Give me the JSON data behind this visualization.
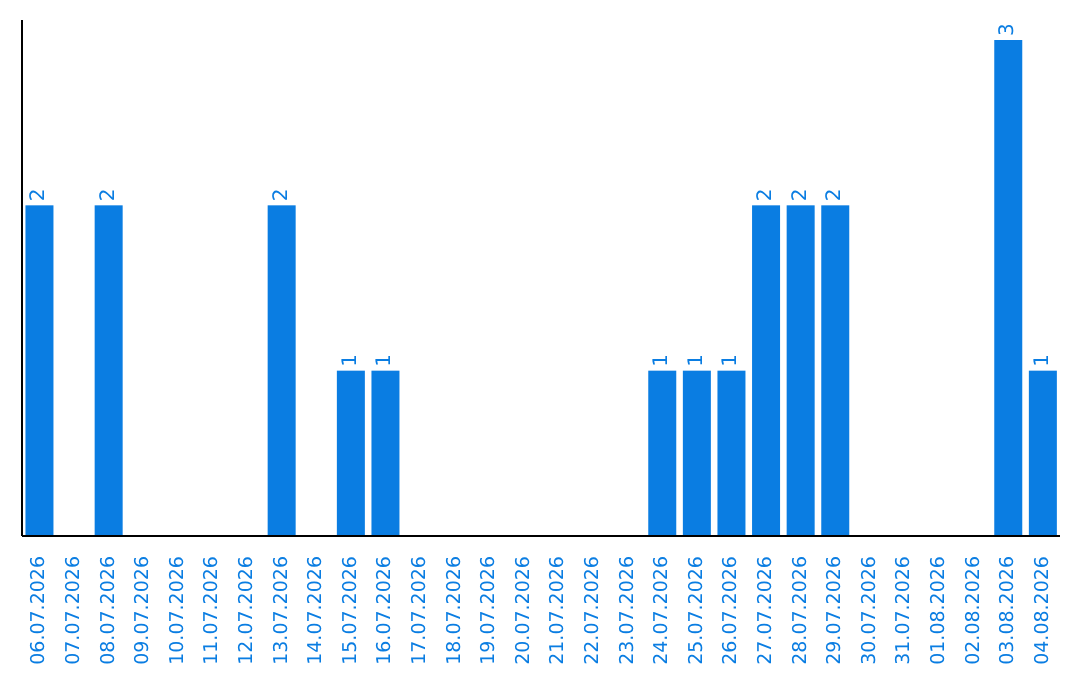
{
  "chart_data": {
    "type": "bar",
    "categories": [
      "06.07.2026",
      "07.07.2026",
      "08.07.2026",
      "09.07.2026",
      "10.07.2026",
      "11.07.2026",
      "12.07.2026",
      "13.07.2026",
      "14.07.2026",
      "15.07.2026",
      "16.07.2026",
      "17.07.2026",
      "18.07.2026",
      "19.07.2026",
      "20.07.2026",
      "21.07.2026",
      "22.07.2026",
      "23.07.2026",
      "24.07.2026",
      "25.07.2026",
      "26.07.2026",
      "27.07.2026",
      "28.07.2026",
      "29.07.2026",
      "30.07.2026",
      "31.07.2026",
      "01.08.2026",
      "02.08.2026",
      "03.08.2026",
      "04.08.2026"
    ],
    "values": [
      2,
      0,
      2,
      0,
      0,
      0,
      0,
      2,
      0,
      1,
      1,
      0,
      0,
      0,
      0,
      0,
      0,
      0,
      1,
      1,
      1,
      2,
      2,
      2,
      0,
      0,
      0,
      0,
      3,
      1
    ],
    "value_labels": [
      "2",
      null,
      "2",
      null,
      null,
      null,
      null,
      "2",
      null,
      "1",
      "1",
      null,
      null,
      null,
      null,
      null,
      null,
      null,
      "1",
      "1",
      "1",
      "2",
      "2",
      "2",
      null,
      null,
      null,
      null,
      "3",
      "1"
    ],
    "color": "#0a7de2",
    "tick_labels": "x"
  }
}
